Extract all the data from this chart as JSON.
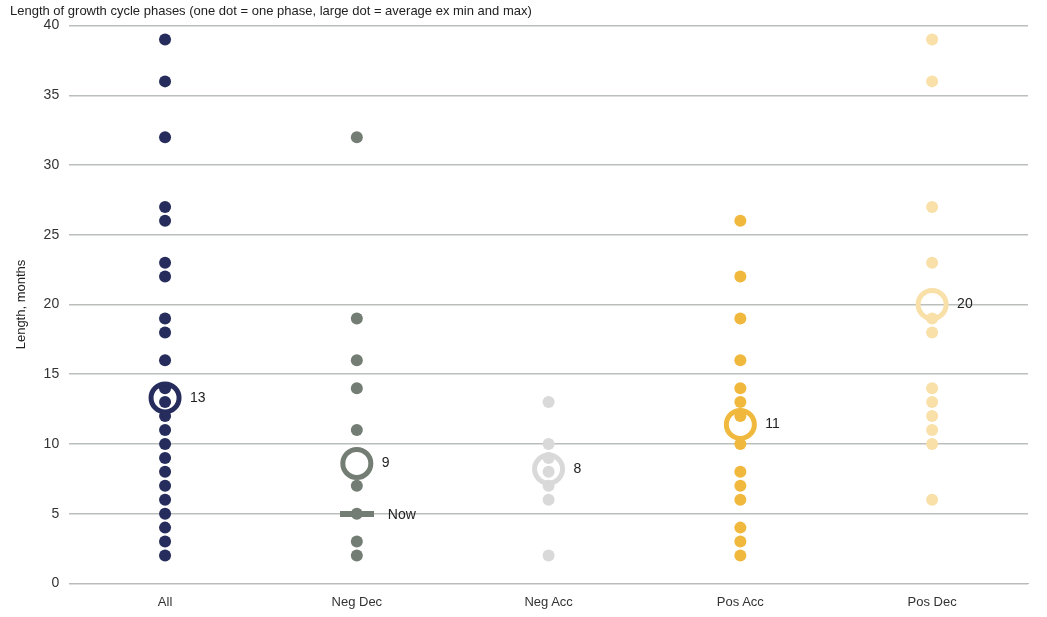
{
  "chart_data": {
    "type": "scatter",
    "title": "Length of growth cycle phases (one dot = one phase, large dot = average ex min and max)",
    "ylabel": "Length, months",
    "categories": [
      "All",
      "Neg Dec",
      "Neg Acc",
      "Pos Acc",
      "Pos Dec"
    ],
    "series": [
      {
        "type": "scatter",
        "color": "#262d5c",
        "x": [
          "All",
          "All",
          "All",
          "All",
          "All",
          "All",
          "All",
          "All",
          "All",
          "All",
          "All",
          "All",
          "All",
          "All",
          "All",
          "All",
          "All",
          "All",
          "All",
          "All",
          "All",
          "All",
          "All"
        ],
        "values": [
          39,
          36,
          32,
          27,
          26,
          23,
          22,
          19,
          18,
          16,
          14,
          13,
          12,
          11,
          10,
          9,
          8,
          7,
          6,
          5,
          4,
          3,
          2
        ]
      },
      {
        "type": "scatter",
        "color": "#737d73",
        "x": [
          "Neg Dec",
          "Neg Dec",
          "Neg Dec",
          "Neg Dec",
          "Neg Dec",
          "Neg Dec",
          "Neg Dec",
          "Neg Dec",
          "Neg Dec"
        ],
        "values": [
          32,
          19,
          16,
          14,
          11,
          7,
          5,
          3,
          2
        ]
      },
      {
        "type": "scatter",
        "color": "#d9d9d9",
        "x": [
          "Neg Acc",
          "Neg Acc",
          "Neg Acc",
          "Neg Acc",
          "Neg Acc",
          "Neg Acc",
          "Neg Acc"
        ],
        "values": [
          13,
          10,
          9,
          8,
          7,
          6,
          2
        ]
      },
      {
        "type": "scatter",
        "color": "#f0b83c",
        "x": [
          "Pos Acc",
          "Pos Acc",
          "Pos Acc",
          "Pos Acc",
          "Pos Acc",
          "Pos Acc",
          "Pos Acc",
          "Pos Acc",
          "Pos Acc",
          "Pos Acc",
          "Pos Acc",
          "Pos Acc",
          "Pos Acc",
          "Pos Acc"
        ],
        "values": [
          26,
          22,
          19,
          16,
          14,
          13,
          12,
          10,
          8,
          7,
          6,
          4,
          3,
          2
        ]
      },
      {
        "type": "scatter",
        "color": "#f8e0a8",
        "x": [
          "Pos Dec",
          "Pos Dec",
          "Pos Dec",
          "Pos Dec",
          "Pos Dec",
          "Pos Dec",
          "Pos Dec",
          "Pos Dec",
          "Pos Dec",
          "Pos Dec",
          "Pos Dec",
          "Pos Dec"
        ],
        "values": [
          39,
          36,
          27,
          23,
          19,
          18,
          14,
          13,
          12,
          11,
          10,
          6
        ]
      },
      {
        "type": "scatter",
        "x": [
          "All",
          "Neg Dec",
          "Neg Acc",
          "Pos Acc",
          "Pos Dec"
        ],
        "colors": [
          "#262d5c",
          "#737d73",
          "#d9d9d9",
          "#f0b83c",
          "#f8e0a8"
        ],
        "values": [
          13.3,
          8.6,
          8.2,
          11.4,
          20
        ],
        "value_labels": [
          "13",
          "9",
          "8",
          "11",
          "20"
        ]
      }
    ],
    "annotations": [
      {
        "text": "Now",
        "x": "Neg Dec",
        "y": 5
      }
    ],
    "ylim": [
      0,
      40
    ],
    "yticks": [
      0,
      5,
      10,
      15,
      20,
      25,
      30,
      35,
      40
    ],
    "grid": "y",
    "legend": false,
    "marker": "circle"
  }
}
